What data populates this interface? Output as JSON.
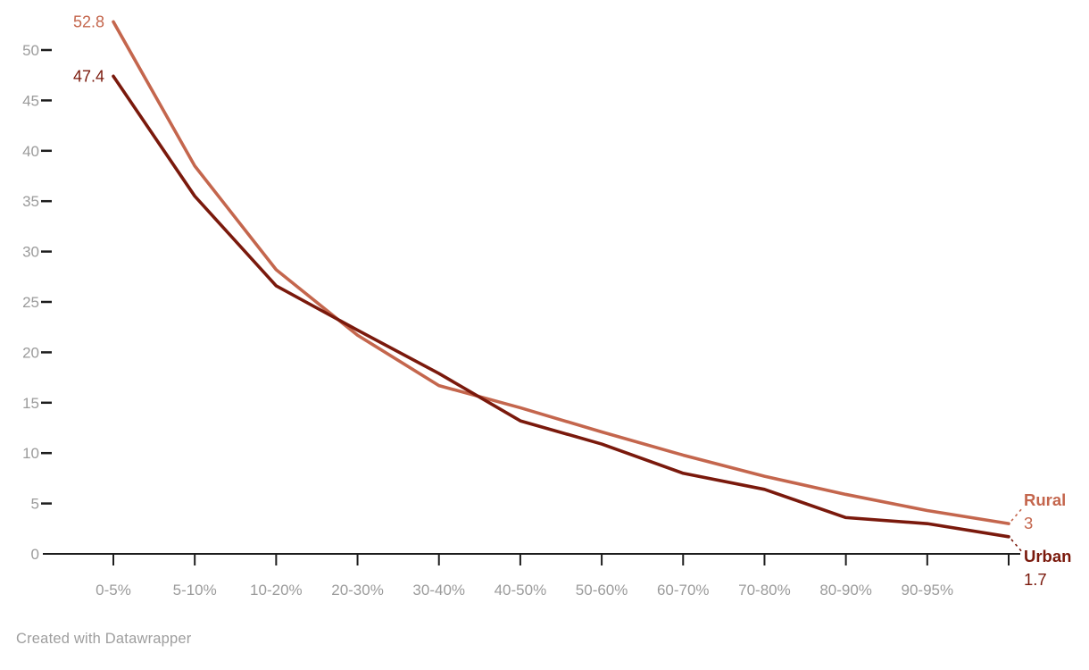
{
  "chart_data": {
    "type": "line",
    "title": "",
    "xlabel": "",
    "ylabel": "",
    "categories": [
      "0-5%",
      "5-10%",
      "10-20%",
      "20-30%",
      "30-40%",
      "40-50%",
      "50-60%",
      "60-70%",
      "70-80%",
      "80-90%",
      "90-95%",
      ""
    ],
    "series": [
      {
        "name": "Rural",
        "color": "#c4664d",
        "values": [
          52.8,
          38.5,
          28.2,
          21.7,
          16.7,
          14.5,
          12.1,
          9.8,
          7.7,
          5.9,
          4.3,
          3
        ],
        "start_label": "52.8",
        "end_label": "3"
      },
      {
        "name": "Urban",
        "color": "#7a190c",
        "values": [
          47.4,
          35.5,
          26.6,
          22.2,
          17.9,
          13.2,
          10.9,
          8,
          6.4,
          3.6,
          3,
          1.7
        ],
        "start_label": "47.4",
        "end_label": "1.7"
      }
    ],
    "y_ticks": [
      0,
      5,
      10,
      15,
      20,
      25,
      30,
      35,
      40,
      45,
      50
    ],
    "ylim": [
      0,
      53.5
    ],
    "grid": false,
    "legend_position": "end-of-line direct labels"
  },
  "footer": {
    "credit": "Created with Datawrapper"
  },
  "colors": {
    "axis": "#1d1d1d",
    "tick_label": "#9b9b9b",
    "background": "#ffffff"
  }
}
